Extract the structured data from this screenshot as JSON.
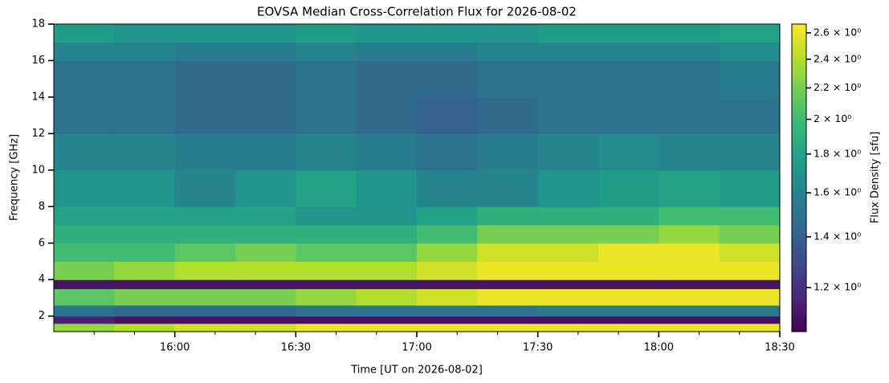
{
  "chart_data": {
    "type": "heatmap",
    "title": "EOVSA Median Cross-Correlation Flux for 2026-08-02",
    "x_label": "Time [UT on 2026-08-02]",
    "y_label": "Frequency [GHz]",
    "x": [
      930,
      945,
      960,
      975,
      990,
      1005,
      1020,
      1035,
      1050,
      1065,
      1080,
      1095,
      1110
    ],
    "y": [
      1.15,
      1.6,
      2.0,
      2.6,
      3.5,
      4.0,
      5.0,
      6.0,
      7.0,
      8.0,
      10.0,
      12.0,
      14.0,
      16.0,
      17.0,
      18.0
    ],
    "z": [
      [
        2.3,
        2.4,
        2.5,
        2.5,
        2.6,
        2.6,
        2.6,
        2.6,
        2.6,
        2.6,
        2.6,
        2.6
      ],
      [
        1.15,
        1.1,
        1.1,
        1.1,
        1.1,
        1.1,
        1.1,
        1.1,
        1.1,
        1.1,
        1.1,
        1.1
      ],
      [
        1.5,
        1.45,
        1.45,
        1.45,
        1.5,
        1.5,
        1.5,
        1.5,
        1.55,
        1.55,
        1.55,
        1.55
      ],
      [
        2.1,
        2.2,
        2.2,
        2.2,
        2.3,
        2.4,
        2.5,
        2.6,
        2.6,
        2.6,
        2.6,
        2.6
      ],
      [
        1.1,
        1.1,
        1.1,
        1.1,
        1.1,
        1.1,
        1.1,
        1.1,
        1.1,
        1.1,
        1.1,
        1.1
      ],
      [
        2.2,
        2.3,
        2.4,
        2.4,
        2.4,
        2.4,
        2.5,
        2.6,
        2.6,
        2.6,
        2.6,
        2.6
      ],
      [
        2.0,
        2.0,
        2.1,
        2.2,
        2.1,
        2.1,
        2.3,
        2.5,
        2.5,
        2.6,
        2.6,
        2.5
      ],
      [
        1.9,
        1.9,
        1.9,
        1.9,
        1.9,
        1.9,
        2.0,
        2.2,
        2.2,
        2.2,
        2.3,
        2.2
      ],
      [
        1.8,
        1.8,
        1.8,
        1.8,
        1.7,
        1.7,
        1.8,
        1.9,
        1.9,
        1.9,
        2.0,
        2.0
      ],
      [
        1.7,
        1.7,
        1.6,
        1.7,
        1.8,
        1.7,
        1.6,
        1.6,
        1.7,
        1.75,
        1.8,
        1.75
      ],
      [
        1.6,
        1.6,
        1.55,
        1.55,
        1.6,
        1.55,
        1.5,
        1.55,
        1.6,
        1.65,
        1.6,
        1.6
      ],
      [
        1.5,
        1.5,
        1.45,
        1.45,
        1.5,
        1.45,
        1.4,
        1.45,
        1.5,
        1.5,
        1.5,
        1.5
      ],
      [
        1.5,
        1.5,
        1.45,
        1.45,
        1.5,
        1.45,
        1.45,
        1.5,
        1.5,
        1.5,
        1.5,
        1.55
      ],
      [
        1.6,
        1.6,
        1.55,
        1.55,
        1.6,
        1.55,
        1.55,
        1.6,
        1.6,
        1.6,
        1.6,
        1.65
      ],
      [
        1.75,
        1.7,
        1.7,
        1.7,
        1.75,
        1.7,
        1.7,
        1.7,
        1.75,
        1.75,
        1.75,
        1.8
      ]
    ],
    "xlim": [
      930,
      1110
    ],
    "xticks": [
      {
        "value": 960,
        "label": "16:00"
      },
      {
        "value": 990,
        "label": "16:30"
      },
      {
        "value": 1020,
        "label": "17:00"
      },
      {
        "value": 1050,
        "label": "17:30"
      },
      {
        "value": 1080,
        "label": "18:00"
      },
      {
        "value": 1110,
        "label": "18:30"
      }
    ],
    "xminorticks": [
      940,
      950,
      970,
      980,
      1000,
      1010,
      1030,
      1040,
      1060,
      1070,
      1090,
      1100
    ],
    "ylim": [
      1.15,
      18
    ],
    "yticks": [
      2,
      4,
      6,
      8,
      10,
      12,
      14,
      16,
      18
    ],
    "colorbar": {
      "label": "Flux Density [sfu]",
      "colormap": "viridis",
      "scale": "log",
      "lim": [
        1.05,
        2.67
      ],
      "ticks": [
        {
          "value": 1.2,
          "label": "1.2 × 10⁰"
        },
        {
          "value": 1.4,
          "label": "1.4 × 10⁰"
        },
        {
          "value": 1.6,
          "label": "1.6 × 10⁰"
        },
        {
          "value": 1.8,
          "label": "1.8 × 10⁰"
        },
        {
          "value": 2,
          "label": "2 × 10⁰"
        },
        {
          "value": 2.2,
          "label": "2.2 × 10⁰"
        },
        {
          "value": 2.4,
          "label": "2.4 × 10⁰"
        },
        {
          "value": 2.6,
          "label": "2.6 × 10⁰"
        }
      ]
    }
  }
}
